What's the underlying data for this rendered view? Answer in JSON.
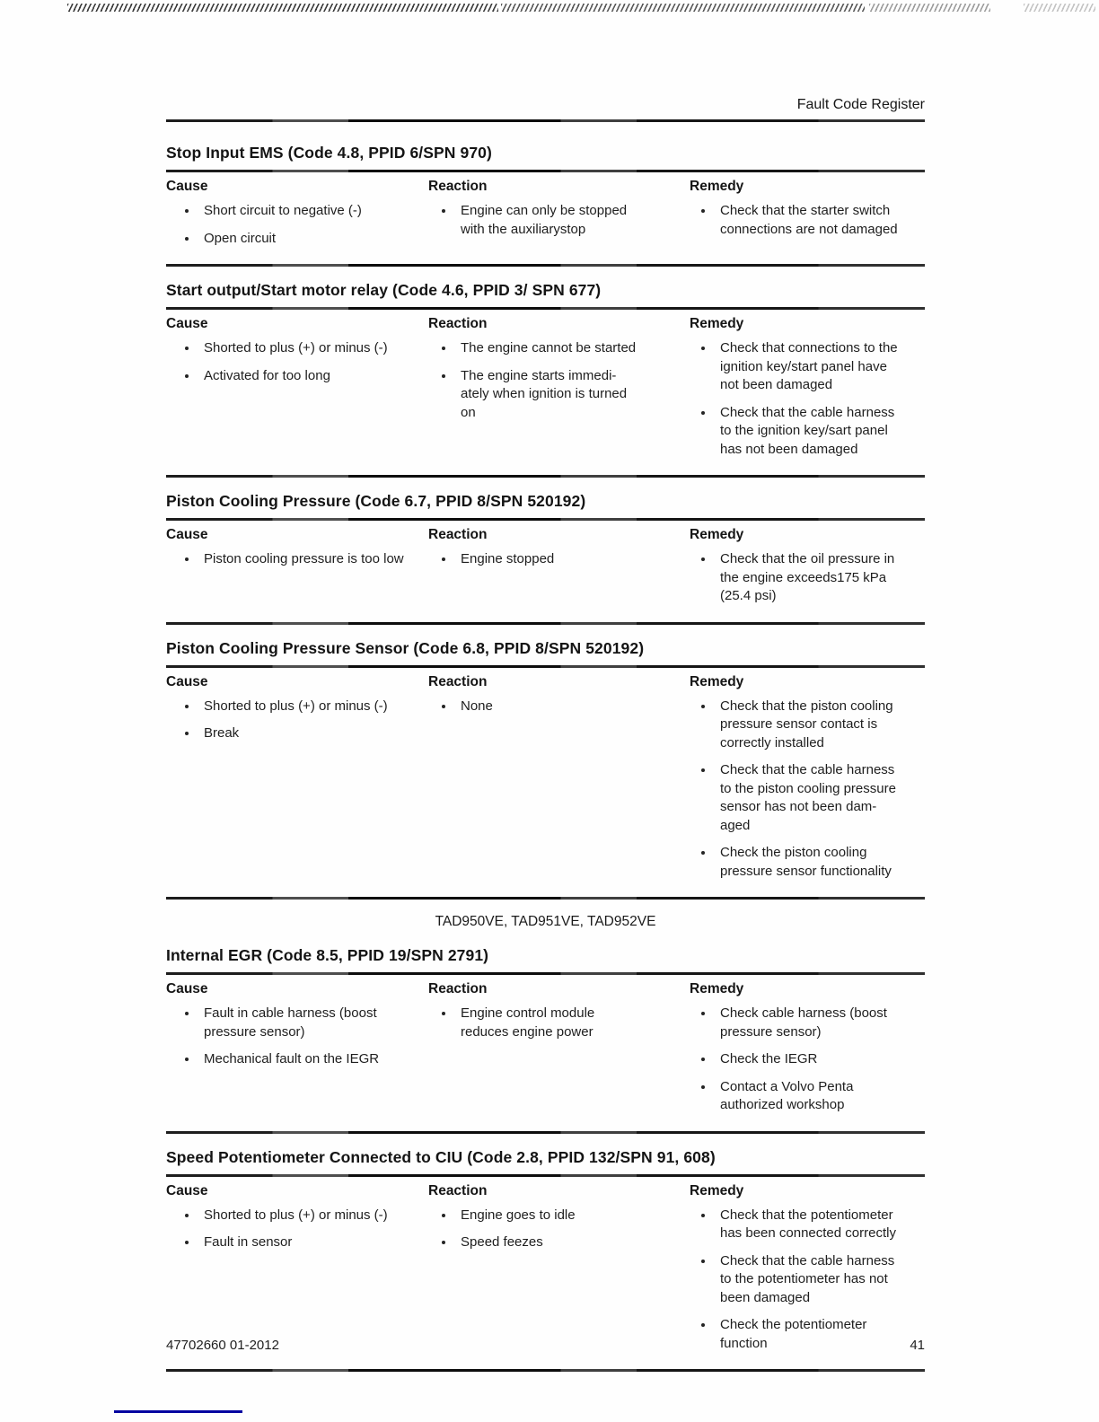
{
  "page": {
    "header_title": "Fault Code Register",
    "engine_models_note": "TAD950VE, TAD951VE, TAD952VE",
    "footer": {
      "doc_number": "47702660 01-2012",
      "page_number": "41"
    }
  },
  "table_headers": {
    "cause": "Cause",
    "reaction": "Reaction",
    "remedy": "Remedy"
  },
  "sections": [
    {
      "title": "Stop Input EMS (Code 4.8, PPID 6/SPN 970)",
      "cause": [
        "Short circuit to negative (-)",
        "Open circuit"
      ],
      "reaction": [
        "Engine can only be stopped with the auxiliarystop"
      ],
      "remedy": [
        "Check that the starter switch connections are not damaged"
      ]
    },
    {
      "title": "Start output/Start motor relay (Code 4.6, PPID 3/ SPN 677)",
      "cause": [
        "Shorted to plus (+) or minus (-)",
        "Activated for too long"
      ],
      "reaction": [
        "The engine cannot be started",
        "The engine starts immedi-ately when ignition is turned on"
      ],
      "remedy": [
        "Check that connections to the ignition key/start panel have not been damaged",
        "Check that the cable harness to the ignition key/sart panel has not been damaged"
      ]
    },
    {
      "title": "Piston Cooling Pressure (Code 6.7, PPID 8/SPN 520192)",
      "cause": [
        "Piston cooling pressure is too low"
      ],
      "reaction": [
        "Engine stopped"
      ],
      "remedy": [
        "Check that the oil pressure in the engine exceeds175 kPa (25.4 psi)"
      ]
    },
    {
      "title": "Piston Cooling Pressure Sensor (Code 6.8, PPID 8/SPN 520192)",
      "cause": [
        "Shorted to plus (+) or minus (-)",
        "Break"
      ],
      "reaction": [
        "None"
      ],
      "remedy": [
        "Check that the piston cooling pressure sensor contact is correctly installed",
        "Check that the cable harness to the piston cooling pressure sensor has not been dam-aged",
        "Check the piston cooling pressure sensor functionality"
      ]
    },
    {
      "title": "Internal EGR (Code 8.5, PPID 19/SPN 2791)",
      "cause": [
        "Fault in cable harness (boost pressure sensor)",
        "Mechanical fault on the IEGR"
      ],
      "reaction": [
        "Engine control module reduces engine power"
      ],
      "remedy": [
        "Check cable harness (boost pressure sensor)",
        "Check the IEGR",
        "Contact a Volvo Penta authorized workshop"
      ]
    },
    {
      "title": "Speed Potentiometer Connected to CIU (Code 2.8, PPID 132/SPN 91, 608)",
      "cause": [
        "Shorted to plus (+) or minus (-)",
        "Fault in sensor"
      ],
      "reaction": [
        "Engine goes to idle",
        "Speed feezes"
      ],
      "remedy": [
        "Check that the potentiometer has been connected correctly",
        "Check that the cable harness to the potentiometer has not been damaged",
        "Check the potentiometer function"
      ]
    }
  ],
  "colors": {
    "ink": "#1b1b1b",
    "footer_line_blue": "#0000a0"
  }
}
